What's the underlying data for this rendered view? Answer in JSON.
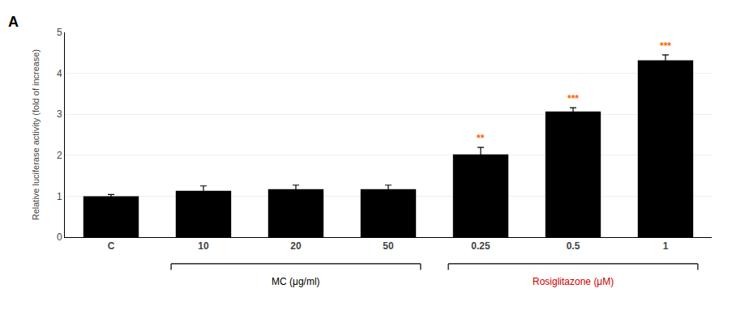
{
  "chart_data": {
    "type": "bar",
    "panel_label": "A",
    "categories": [
      "C",
      "10",
      "20",
      "50",
      "0.25",
      "0.5",
      "1"
    ],
    "values": [
      1.0,
      1.13,
      1.17,
      1.17,
      2.02,
      3.07,
      4.32
    ],
    "errors": [
      0.04,
      0.12,
      0.1,
      0.1,
      0.17,
      0.09,
      0.13
    ],
    "color": "#000000",
    "ylabel": "Relative luciferase activity (fold of increase)",
    "ylim": [
      0,
      5
    ],
    "yticks": [
      0,
      1,
      2,
      3,
      4,
      5
    ],
    "significance": [
      null,
      null,
      null,
      null,
      "**",
      "***",
      "***"
    ],
    "significance_color": "#FF6600",
    "groups": [
      {
        "label": "MC (μg/ml)",
        "categories": [
          "10",
          "20",
          "50"
        ],
        "color": "#000000"
      },
      {
        "label": "Rosiglitazone (μM)",
        "categories": [
          "0.25",
          "0.5",
          "1"
        ],
        "color": "#cc0000"
      }
    ]
  }
}
